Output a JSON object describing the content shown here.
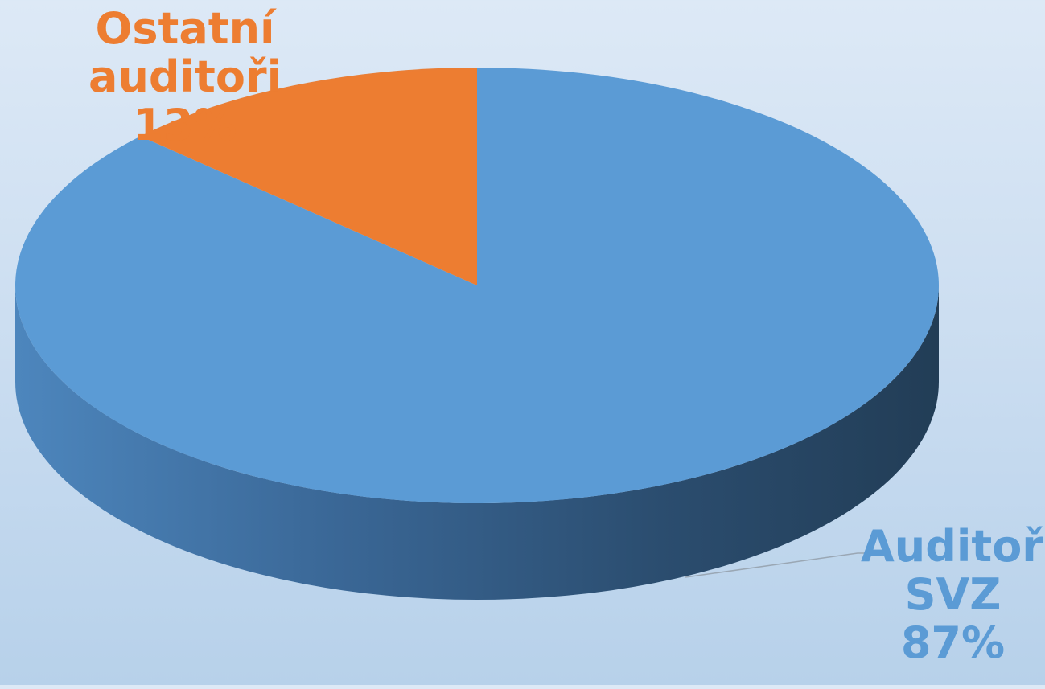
{
  "chart_data": {
    "type": "pie",
    "title": "",
    "style": "3d",
    "slices": [
      {
        "name": "Auditoři SVZ",
        "value": 87,
        "label_line1": "Auditoři",
        "label_line2": "SVZ",
        "label_pct": "87%",
        "color": "#5b9bd5",
        "side_dark": "#223d56",
        "side_light": "#4d86bd"
      },
      {
        "name": "Ostatní auditoři",
        "value": 13,
        "label_line1": "Ostatní",
        "label_line2": "auditoři",
        "label_pct": "13%",
        "color": "#ed7d31"
      }
    ],
    "legend": "none",
    "data_labels": "category-and-percent"
  }
}
